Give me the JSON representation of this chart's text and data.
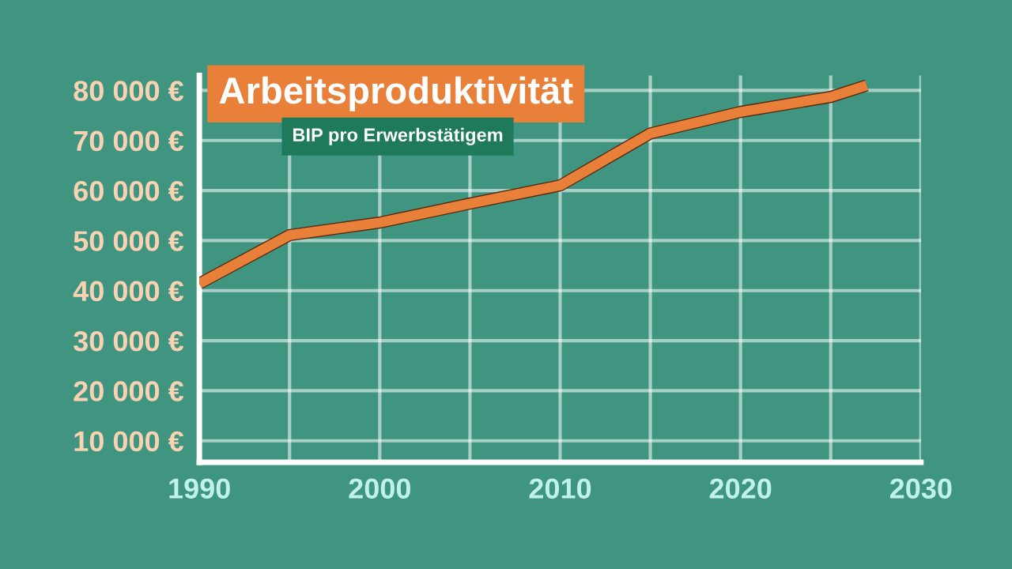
{
  "chart_data": {
    "type": "line",
    "title": "Arbeitsproduktivität",
    "subtitle": "BIP pro Erwerbstätigem",
    "x": [
      1990,
      1995,
      2000,
      2005,
      2010,
      2015,
      2020,
      2025,
      2027
    ],
    "series": [
      {
        "color": "#e8803a",
        "values": [
          41400,
          51100,
          53600,
          57400,
          61000,
          71400,
          75700,
          78700,
          81000
        ]
      }
    ],
    "xlim": [
      1990,
      2030
    ],
    "xticks": [
      1990,
      {
        "value": 1995,
        "label": null
      },
      2000,
      {
        "value": 2005,
        "label": null
      },
      2010,
      {
        "value": 2015,
        "label": null
      },
      2020,
      {
        "value": 2025,
        "label": null
      },
      2030
    ],
    "ylim": [
      5700,
      83000
    ],
    "yticks": [
      {
        "value": 10000,
        "label": "10 000 €"
      },
      {
        "value": 20000,
        "label": "20 000 €"
      },
      {
        "value": 30000,
        "label": "30 000 €"
      },
      {
        "value": 40000,
        "label": "40 000 €"
      },
      {
        "value": 50000,
        "label": "50 000 €"
      },
      {
        "value": 60000,
        "label": "60 000 €"
      },
      {
        "value": 70000,
        "label": "70 000 €"
      },
      {
        "value": 80000,
        "label": "80 000 €"
      }
    ],
    "grid": true,
    "legend": false,
    "marker": "none",
    "line_style": "solid"
  }
}
